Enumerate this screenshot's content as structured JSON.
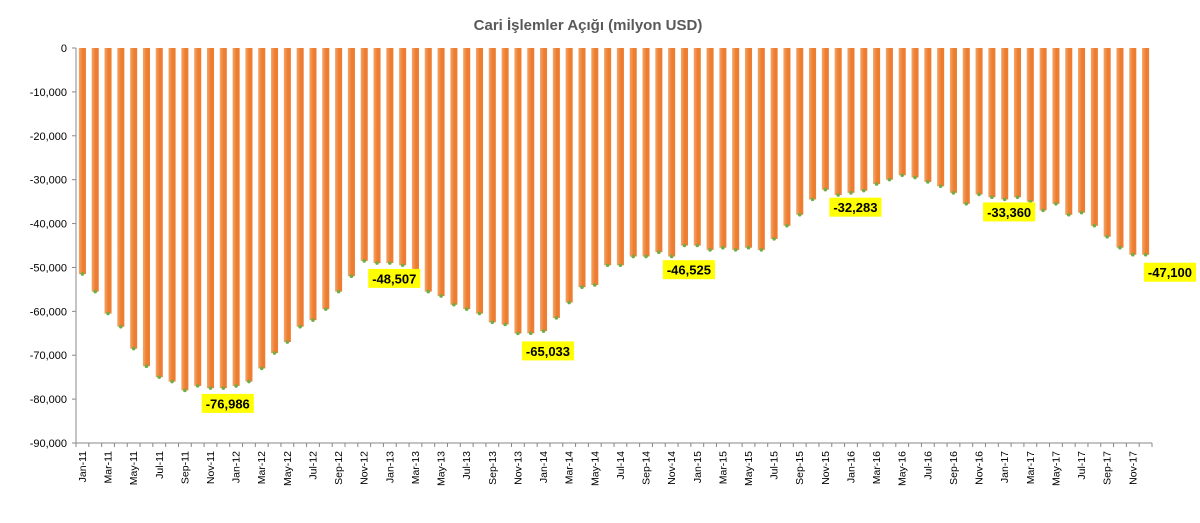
{
  "chart_data": {
    "type": "bar",
    "title": "Cari İşlemler Açığı (milyon USD)",
    "xlabel": "",
    "ylabel": "",
    "ylim": [
      -90000,
      0
    ],
    "yticks": [
      0,
      -10000,
      -20000,
      -30000,
      -40000,
      -50000,
      -60000,
      -70000,
      -80000,
      -90000
    ],
    "ytick_labels": [
      "0",
      "-10,000",
      "-20,000",
      "-30,000",
      "-40,000",
      "-50,000",
      "-60,000",
      "-70,000",
      "-80,000",
      "-90,000"
    ],
    "grid": false,
    "legend": "none",
    "colors": {
      "bar": "#ED7D31",
      "bar_light": "#F4A566",
      "marker": "#70AD47",
      "label_bg": "#FFFF00"
    },
    "categories": [
      "Jan-11",
      "Feb-11",
      "Mar-11",
      "Apr-11",
      "May-11",
      "Jun-11",
      "Jul-11",
      "Aug-11",
      "Sep-11",
      "Oct-11",
      "Nov-11",
      "Dec-11",
      "Jan-12",
      "Feb-12",
      "Mar-12",
      "Apr-12",
      "May-12",
      "Jun-12",
      "Jul-12",
      "Aug-12",
      "Sep-12",
      "Oct-12",
      "Nov-12",
      "Dec-12",
      "Jan-13",
      "Feb-13",
      "Mar-13",
      "Apr-13",
      "May-13",
      "Jun-13",
      "Jul-13",
      "Aug-13",
      "Sep-13",
      "Oct-13",
      "Nov-13",
      "Dec-13",
      "Jan-14",
      "Feb-14",
      "Mar-14",
      "Apr-14",
      "May-14",
      "Jun-14",
      "Jul-14",
      "Aug-14",
      "Sep-14",
      "Oct-14",
      "Nov-14",
      "Dec-14",
      "Jan-15",
      "Feb-15",
      "Mar-15",
      "Apr-15",
      "May-15",
      "Jun-15",
      "Jul-15",
      "Aug-15",
      "Sep-15",
      "Oct-15",
      "Nov-15",
      "Dec-15",
      "Jan-16",
      "Feb-16",
      "Mar-16",
      "Apr-16",
      "May-16",
      "Jun-16",
      "Jul-16",
      "Aug-16",
      "Sep-16",
      "Oct-16",
      "Nov-16",
      "Dec-16",
      "Jan-17",
      "Feb-17",
      "Mar-17",
      "Apr-17",
      "May-17",
      "Jun-17",
      "Jul-17",
      "Aug-17",
      "Sep-17",
      "Oct-17",
      "Nov-17",
      "Dec-17"
    ],
    "tick_labels": [
      "Jan-11",
      "Mar-11",
      "May-11",
      "Jul-11",
      "Sep-11",
      "Nov-11",
      "Jan-12",
      "Mar-12",
      "May-12",
      "Jul-12",
      "Sep-12",
      "Nov-12",
      "Jan-13",
      "Mar-13",
      "May-13",
      "Jul-13",
      "Sep-13",
      "Nov-13",
      "Jan-14",
      "Mar-14",
      "May-14",
      "Jul-14",
      "Sep-14",
      "Nov-14",
      "Jan-15",
      "Mar-15",
      "May-15",
      "Jul-15",
      "Sep-15",
      "Nov-15",
      "Jan-16",
      "Mar-16",
      "May-16",
      "Jul-16",
      "Sep-16",
      "Nov-16",
      "Jan-17",
      "Mar-17",
      "May-17",
      "Jul-17",
      "Sep-17",
      "Nov-17"
    ],
    "values": [
      -51500,
      -55500,
      -60500,
      -63500,
      -68500,
      -72500,
      -75000,
      -76000,
      -78000,
      -76986,
      -77500,
      -77500,
      -77000,
      -76000,
      -73000,
      -69500,
      -67000,
      -63500,
      -62000,
      -59500,
      -55500,
      -52000,
      -48507,
      -49000,
      -49000,
      -49500,
      -53000,
      -55500,
      -56500,
      -58500,
      -59500,
      -60500,
      -62500,
      -63000,
      -65033,
      -65000,
      -64500,
      -61500,
      -58000,
      -54500,
      -54000,
      -49500,
      -49500,
      -47500,
      -47500,
      -46525,
      -47500,
      -45000,
      -45000,
      -46000,
      -45500,
      -46000,
      -45500,
      -46000,
      -43500,
      -40500,
      -38000,
      -34500,
      -32283,
      -33500,
      -33000,
      -32500,
      -31000,
      -30000,
      -29000,
      -29500,
      -30500,
      -31500,
      -33000,
      -35500,
      -33360,
      -34000,
      -34500,
      -34000,
      -35000,
      -37000,
      -35500,
      -38000,
      -37500,
      -40500,
      -43000,
      -45500,
      -47100,
      -47100
    ],
    "annotations": [
      {
        "category": "Oct-11",
        "label": "-76,986"
      },
      {
        "category": "Nov-12",
        "label": "-48,507"
      },
      {
        "category": "Nov-13",
        "label": "-65,033"
      },
      {
        "category": "Oct-14",
        "label": "-46,525"
      },
      {
        "category": "Nov-15",
        "label": "-32,283"
      },
      {
        "category": "Nov-16",
        "label": "-33,360"
      },
      {
        "category": "Dec-17",
        "label": "-47,100"
      }
    ]
  }
}
